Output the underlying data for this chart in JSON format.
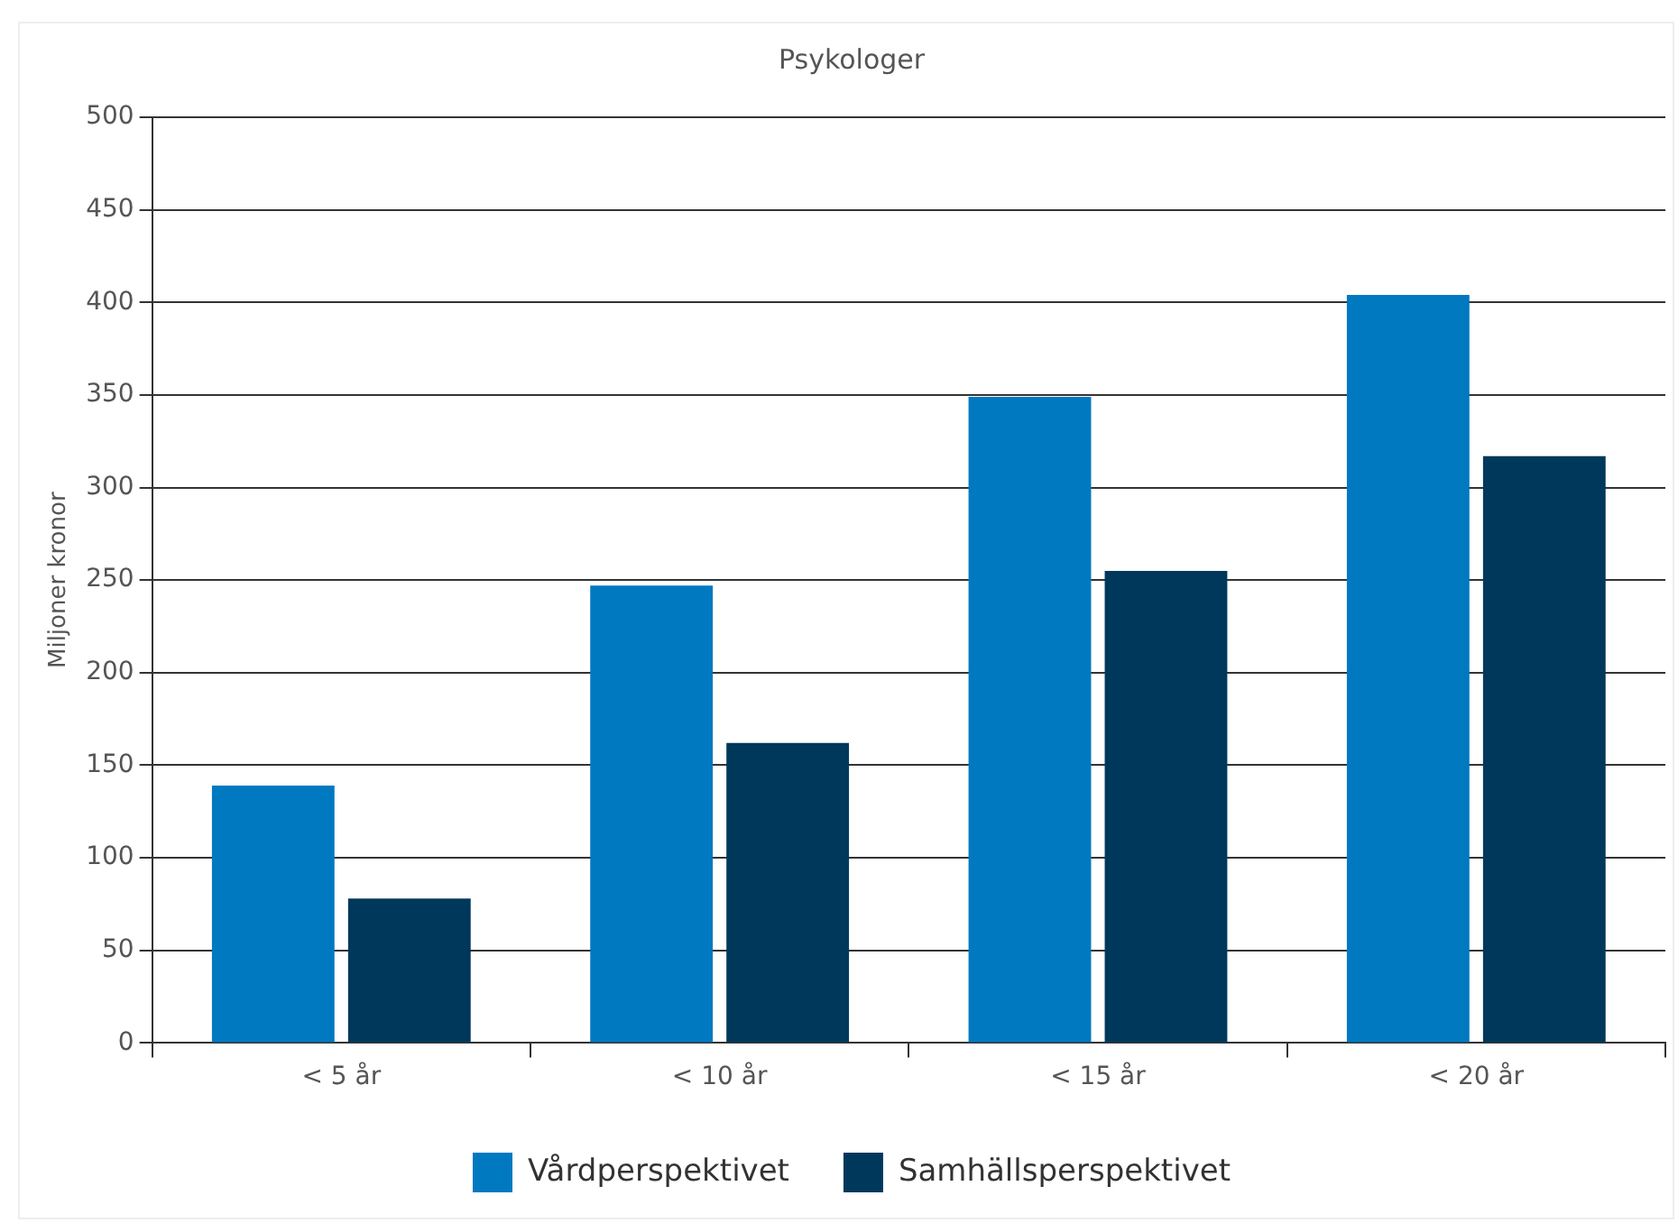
{
  "chart_data": {
    "type": "bar",
    "title": "Psykologer",
    "ylabel": "Miljoner kronor",
    "categories": [
      "< 5 år",
      "< 10 år",
      "< 15 år",
      "< 20 år"
    ],
    "series": [
      {
        "name": "Vårdperspektivet",
        "color": "#0079c1",
        "values": [
          139,
          247,
          349,
          404
        ]
      },
      {
        "name": "Samhällsperspektivet",
        "color": "#00385c",
        "values": [
          78,
          162,
          255,
          317
        ]
      }
    ],
    "ylim": [
      0,
      500
    ],
    "yticks": [
      0,
      50,
      100,
      150,
      200,
      250,
      300,
      350,
      400,
      450,
      500
    ],
    "grid": "y",
    "legend": "bottom"
  }
}
